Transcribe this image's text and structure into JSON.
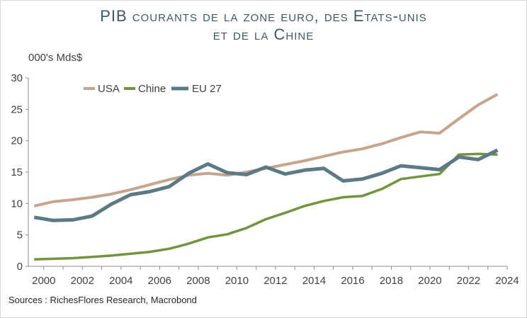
{
  "title_line1": "PIB courants de la zone euro, des Etats-unis",
  "title_line2": "et de la Chine",
  "source": "Sources : RichesFlores Research, Macrobond",
  "chart_data": {
    "type": "line",
    "ylabel": "000's Mds$",
    "xlim": [
      1999.2,
      2024
    ],
    "ylim": [
      0,
      30
    ],
    "x_ticks": [
      2000,
      2002,
      2004,
      2006,
      2008,
      2010,
      2012,
      2014,
      2016,
      2018,
      2020,
      2022,
      2024
    ],
    "y_ticks": [
      0,
      5,
      10,
      15,
      20,
      25,
      30
    ],
    "legend_position": "top-left",
    "series": [
      {
        "name": "USA",
        "color": "#c8a48a",
        "x": [
          1999.5,
          2000.5,
          2001.5,
          2002.5,
          2003.5,
          2004.5,
          2005.5,
          2006.5,
          2007.5,
          2008.5,
          2009.5,
          2010.5,
          2011.5,
          2012.5,
          2013.5,
          2014.5,
          2015.5,
          2016.5,
          2017.5,
          2018.5,
          2019.5,
          2020.5,
          2021.5,
          2022.5,
          2023.5
        ],
        "values": [
          9.6,
          10.3,
          10.6,
          11.0,
          11.5,
          12.2,
          13.0,
          13.8,
          14.5,
          14.8,
          14.5,
          15.0,
          15.6,
          16.2,
          16.8,
          17.5,
          18.2,
          18.7,
          19.5,
          20.5,
          21.4,
          21.2,
          23.5,
          25.7,
          27.4
        ]
      },
      {
        "name": "Chine",
        "color": "#70963a",
        "x": [
          1999.5,
          2000.5,
          2001.5,
          2002.5,
          2003.5,
          2004.5,
          2005.5,
          2006.5,
          2007.5,
          2008.5,
          2009.5,
          2010.5,
          2011.5,
          2012.5,
          2013.5,
          2014.5,
          2015.5,
          2016.5,
          2017.5,
          2018.5,
          2019.5,
          2020.5,
          2021.5,
          2022.5,
          2023.5
        ],
        "values": [
          1.1,
          1.2,
          1.3,
          1.5,
          1.7,
          2.0,
          2.3,
          2.8,
          3.6,
          4.6,
          5.1,
          6.1,
          7.5,
          8.5,
          9.6,
          10.4,
          11.0,
          11.2,
          12.3,
          13.9,
          14.3,
          14.7,
          17.8,
          17.9,
          17.8
        ]
      },
      {
        "name": "EU 27",
        "color": "#5a7a86",
        "x": [
          1999.5,
          2000.5,
          2001.5,
          2002.5,
          2003.5,
          2004.5,
          2005.5,
          2006.5,
          2007.5,
          2008.5,
          2009.5,
          2010.5,
          2011.5,
          2012.5,
          2013.5,
          2014.5,
          2015.5,
          2016.5,
          2017.5,
          2018.5,
          2019.5,
          2020.5,
          2021.5,
          2022.5,
          2023.5
        ],
        "values": [
          7.8,
          7.3,
          7.4,
          8.0,
          9.9,
          11.4,
          11.9,
          12.7,
          14.8,
          16.3,
          14.9,
          14.6,
          15.8,
          14.7,
          15.3,
          15.6,
          13.6,
          13.9,
          14.8,
          16.0,
          15.7,
          15.4,
          17.4,
          17.0,
          18.5
        ]
      }
    ]
  }
}
